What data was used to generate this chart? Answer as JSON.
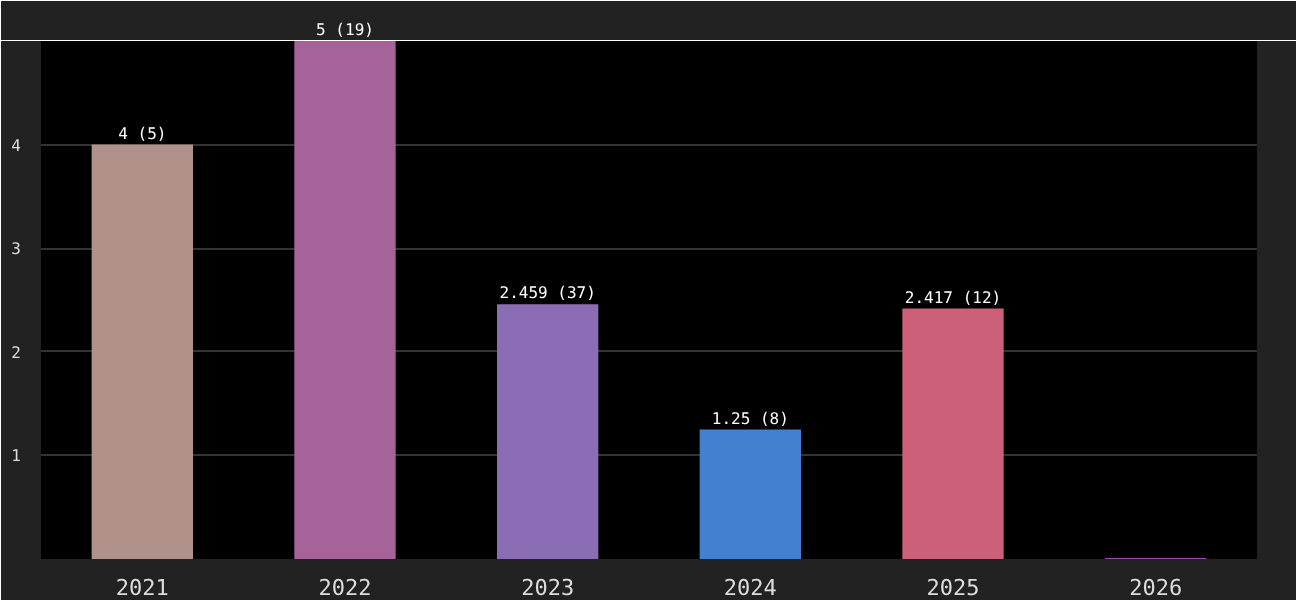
{
  "chart_data": {
    "type": "bar",
    "categories": [
      "2021",
      "2022",
      "2023",
      "2024",
      "2025",
      "2026"
    ],
    "values": [
      4,
      5,
      2.459,
      1.25,
      2.417,
      0.01
    ],
    "colors": [
      "#b0928a",
      "#a6639a",
      "#8b6db5",
      "#4480d0",
      "#cc6078",
      "#9b4fb0"
    ],
    "value_labels": [
      "4 (5)",
      "5 (19)",
      "2.459 (37)",
      "1.25 (8)",
      "2.417 (12)",
      null
    ],
    "ylim": [
      0,
      5
    ],
    "yticks": [
      1,
      2,
      3,
      4
    ],
    "grid": "y"
  }
}
